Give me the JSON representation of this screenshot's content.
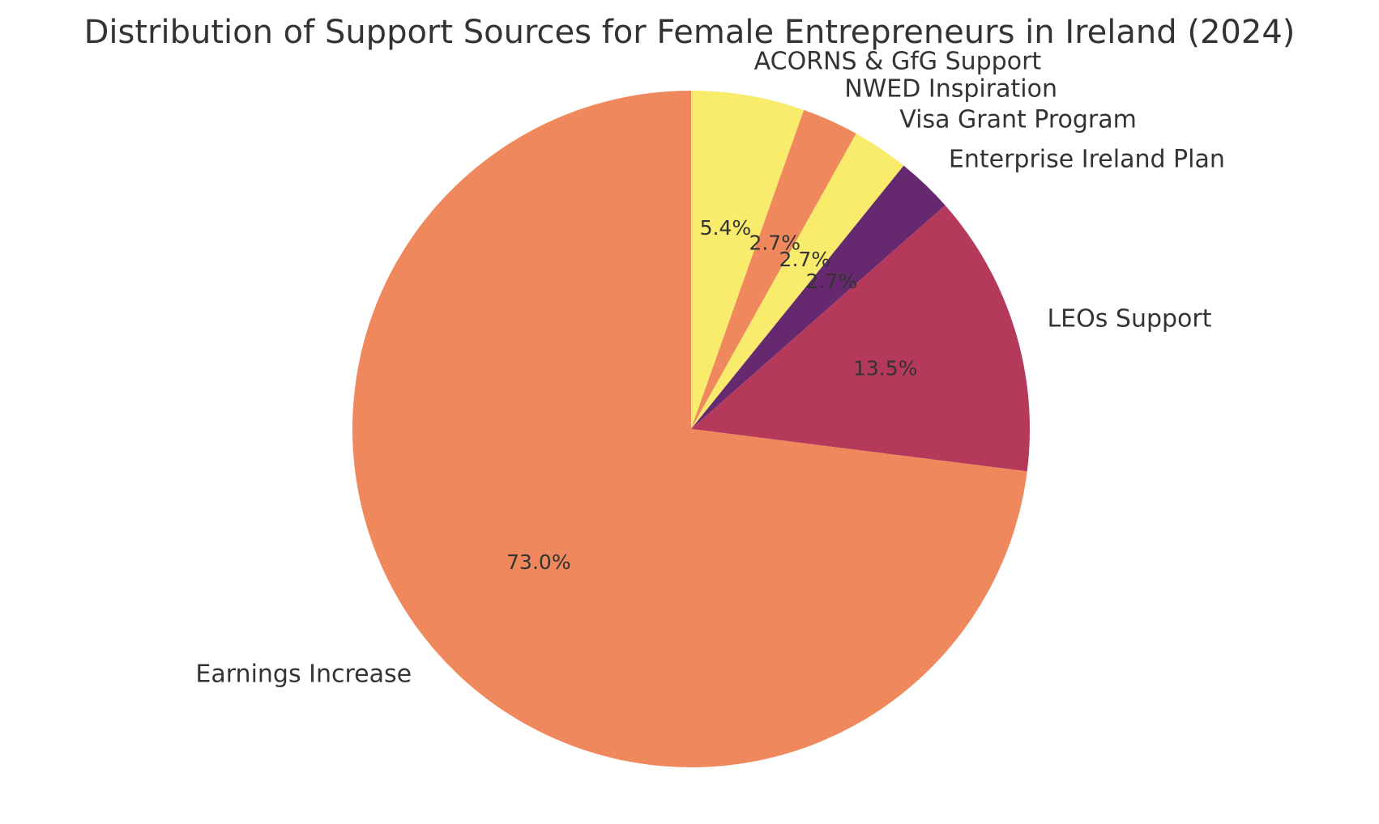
{
  "chart_data": {
    "type": "pie",
    "title": "Distribution of Support Sources for Female Entrepreneurs in Ireland (2024)",
    "start_angle_deg": 90,
    "direction": "clockwise",
    "slices": [
      {
        "label": "ACORNS & GfG Support",
        "value": 5.4,
        "pct_label": "5.4%",
        "color": "#f9eb6b"
      },
      {
        "label": "NWED Inspiration",
        "value": 2.7,
        "pct_label": "2.7%",
        "color": "#ef885c"
      },
      {
        "label": "Visa Grant Program",
        "value": 2.7,
        "pct_label": "2.7%",
        "color": "#f9eb6b"
      },
      {
        "label": "Enterprise Ireland Plan",
        "value": 2.7,
        "pct_label": "2.7%",
        "color": "#66296f"
      },
      {
        "label": "LEOs Support",
        "value": 13.5,
        "pct_label": "13.5%",
        "color": "#b5395b"
      },
      {
        "label": "Earnings Increase",
        "value": 73.0,
        "pct_label": "73.0%",
        "color": "#ef885c"
      }
    ]
  }
}
